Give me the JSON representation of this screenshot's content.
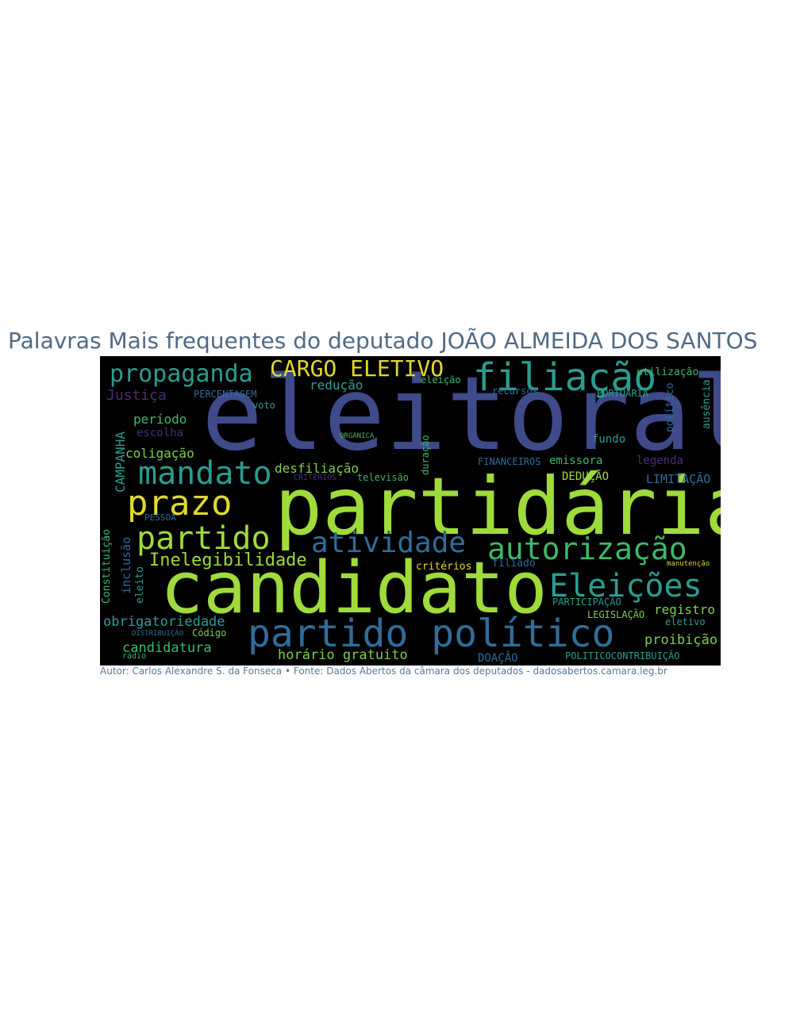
{
  "title": "Palavras Mais frequentes do deputado JOÃO ALMEIDA DOS SANTOS",
  "credit": "Autor: Carlos Alexandre S. da Fonseca • Fonte: Dados Abertos da câmara dos deputados - dadosabertos.camara.leg.br",
  "colors": {
    "background": "#000000",
    "title": "#4f6a86",
    "palette": [
      "#3f4a8a",
      "#9fdb3a",
      "#2a9d8f",
      "#e0d92a",
      "#2f6d9a",
      "#3eb86a",
      "#4d2c7a"
    ]
  },
  "words": [
    {
      "text": "eleitoral",
      "color": "#3f4a8a"
    },
    {
      "text": "partidária",
      "color": "#9fdb3a"
    },
    {
      "text": "candidato",
      "color": "#9fdb3a"
    },
    {
      "text": "partido político",
      "color": "#2f6d9a"
    },
    {
      "text": "filiação",
      "color": "#2a9d8f"
    },
    {
      "text": "CARGO ELETIVO",
      "color": "#e0d92a"
    },
    {
      "text": "propaganda",
      "color": "#2a9d8f"
    },
    {
      "text": "mandato",
      "color": "#2a9d8f"
    },
    {
      "text": "prazo",
      "color": "#e0d92a"
    },
    {
      "text": "partido",
      "color": "#9fdb3a"
    },
    {
      "text": "atividade",
      "color": "#2f6d9a"
    },
    {
      "text": "autorização",
      "color": "#3eb86a"
    },
    {
      "text": "Eleições",
      "color": "#2a9d8f"
    },
    {
      "text": "Inelegibilidade",
      "color": "#9fdb3a"
    },
    {
      "text": "obrigatoriedade",
      "color": "#2f9d9a"
    },
    {
      "text": "candidatura",
      "color": "#3eb86a"
    },
    {
      "text": "horário gratuito",
      "color": "#7fcf4a"
    },
    {
      "text": "proibição",
      "color": "#7fcf4a"
    },
    {
      "text": "registro",
      "color": "#7fcf4a"
    },
    {
      "text": "Justiça",
      "color": "#4d2c7a"
    },
    {
      "text": "PERCENTAGEM",
      "color": "#2f6d9a"
    },
    {
      "text": "redução",
      "color": "#2f9d9a"
    },
    {
      "text": "período",
      "color": "#3eb86a"
    },
    {
      "text": "escolha",
      "color": "#4d2c7a"
    },
    {
      "text": "coligação",
      "color": "#7fcf4a"
    },
    {
      "text": "desfiliação",
      "color": "#7fcf4a"
    },
    {
      "text": "CAMPANHA",
      "color": "#2a9d8f"
    },
    {
      "text": "televisão",
      "color": "#3eb86a"
    },
    {
      "text": "critérios",
      "color": "#e0d92a"
    },
    {
      "text": "DEDUÇÃO",
      "color": "#9fdb3a"
    },
    {
      "text": "LIMITAÇÃO",
      "color": "#2f6d9a"
    },
    {
      "text": "FINANCEIROS",
      "color": "#2f6d9a"
    },
    {
      "text": "emissora",
      "color": "#3eb86a"
    },
    {
      "text": "fundo",
      "color": "#2a9d8f"
    },
    {
      "text": "legenda",
      "color": "#4d2c7a"
    },
    {
      "text": "utilização",
      "color": "#3eb86a"
    },
    {
      "text": "PORTUARIA",
      "color": "#2a9d8f"
    },
    {
      "text": "recursos",
      "color": "#2f6d9a"
    },
    {
      "text": "eleição",
      "color": "#3eb86a"
    },
    {
      "text": "ausência",
      "color": "#2a9d8f"
    },
    {
      "text": "político",
      "color": "#2f6d9a"
    },
    {
      "text": "PARTICIPAÇÃO",
      "color": "#2a9d8f"
    },
    {
      "text": "LEGISLAÇÃO",
      "color": "#7fcf4a"
    },
    {
      "text": "eletivo",
      "color": "#2a9d8f"
    },
    {
      "text": "DOAÇÃO",
      "color": "#2f6d9a"
    },
    {
      "text": "POLITICOCONTRIBUIÇÃO",
      "color": "#2a9d8f"
    },
    {
      "text": "filiado",
      "color": "#2f6d9a"
    },
    {
      "text": "Constituição",
      "color": "#3eb86a"
    },
    {
      "text": "inclusão",
      "color": "#2f6d9a"
    },
    {
      "text": "eleito",
      "color": "#2f9d9a"
    },
    {
      "text": "PESSOA",
      "color": "#2f6d9a"
    },
    {
      "text": "Código",
      "color": "#7fcf4a"
    },
    {
      "text": "DISTRIBUIÇÃO",
      "color": "#2f6d9a"
    },
    {
      "text": "voto",
      "color": "#2a9d8f"
    },
    {
      "text": "duração",
      "color": "#3eb86a"
    },
    {
      "text": "rádio",
      "color": "#3eb86a"
    },
    {
      "text": "CRITÉRIOS",
      "color": "#4d2c7a"
    },
    {
      "text": "ORGANICA",
      "color": "#3eb86a"
    },
    {
      "text": "manutenção",
      "color": "#e0d92a"
    }
  ]
}
